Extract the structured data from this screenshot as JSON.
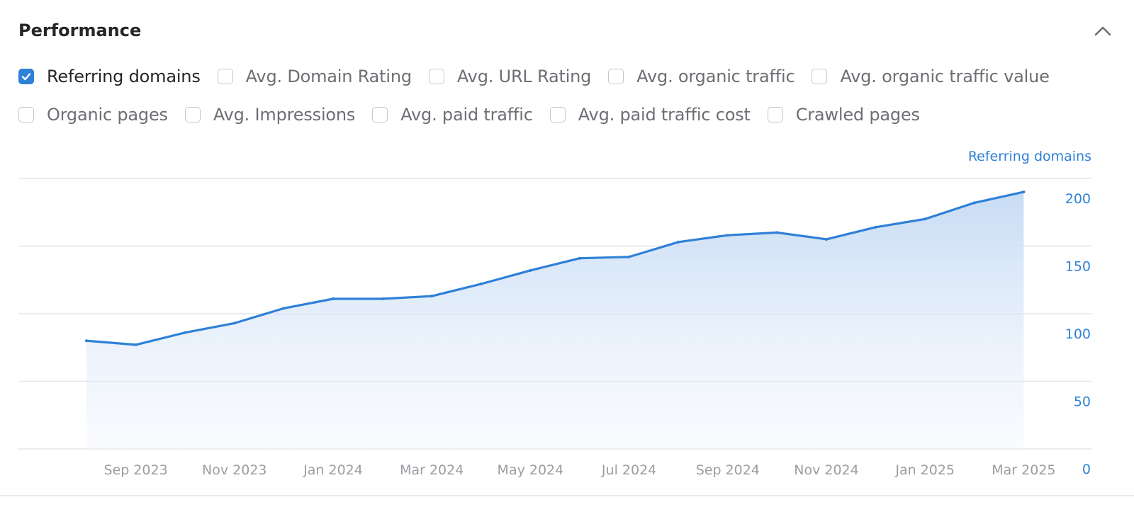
{
  "panel": {
    "title": "Performance"
  },
  "filters": [
    {
      "label": "Referring domains",
      "checked": true
    },
    {
      "label": "Avg. Domain Rating",
      "checked": false
    },
    {
      "label": "Avg. URL Rating",
      "checked": false
    },
    {
      "label": "Avg. organic traffic",
      "checked": false
    },
    {
      "label": "Avg. organic traffic value",
      "checked": false
    },
    {
      "label": "Organic pages",
      "checked": false
    },
    {
      "label": "Avg. Impressions",
      "checked": false
    },
    {
      "label": "Avg. paid traffic",
      "checked": false
    },
    {
      "label": "Avg. paid traffic cost",
      "checked": false
    },
    {
      "label": "Crawled pages",
      "checked": false
    }
  ],
  "colors": {
    "accent": "#2f80d7",
    "grid": "#e3e6e9",
    "axis_text": "#9a9da1"
  },
  "chart_data": {
    "type": "area",
    "y_axis_title": "Referring domains",
    "x_ticks": [
      "Sep 2023",
      "Nov 2023",
      "Jan 2024",
      "Mar 2024",
      "May 2024",
      "Jul 2024",
      "Sep 2024",
      "Nov 2024",
      "Jan 2025",
      "Mar 2025"
    ],
    "y_ticks": [
      "200",
      "150",
      "100",
      "50",
      "0"
    ],
    "ylim": [
      0,
      200
    ],
    "grid": true,
    "y_axis_position": "right",
    "series": [
      {
        "name": "Referring domains",
        "x": [
          "2023-08",
          "2023-09",
          "2023-10",
          "2023-11",
          "2023-12",
          "2024-01",
          "2024-02",
          "2024-03",
          "2024-04",
          "2024-05",
          "2024-06",
          "2024-07",
          "2024-08",
          "2024-09",
          "2024-10",
          "2024-11",
          "2024-12",
          "2025-01",
          "2025-02",
          "2025-03"
        ],
        "values": [
          80,
          77,
          86,
          93,
          104,
          111,
          111,
          113,
          122,
          132,
          141,
          142,
          153,
          158,
          160,
          155,
          164,
          170,
          182,
          190
        ]
      }
    ]
  }
}
